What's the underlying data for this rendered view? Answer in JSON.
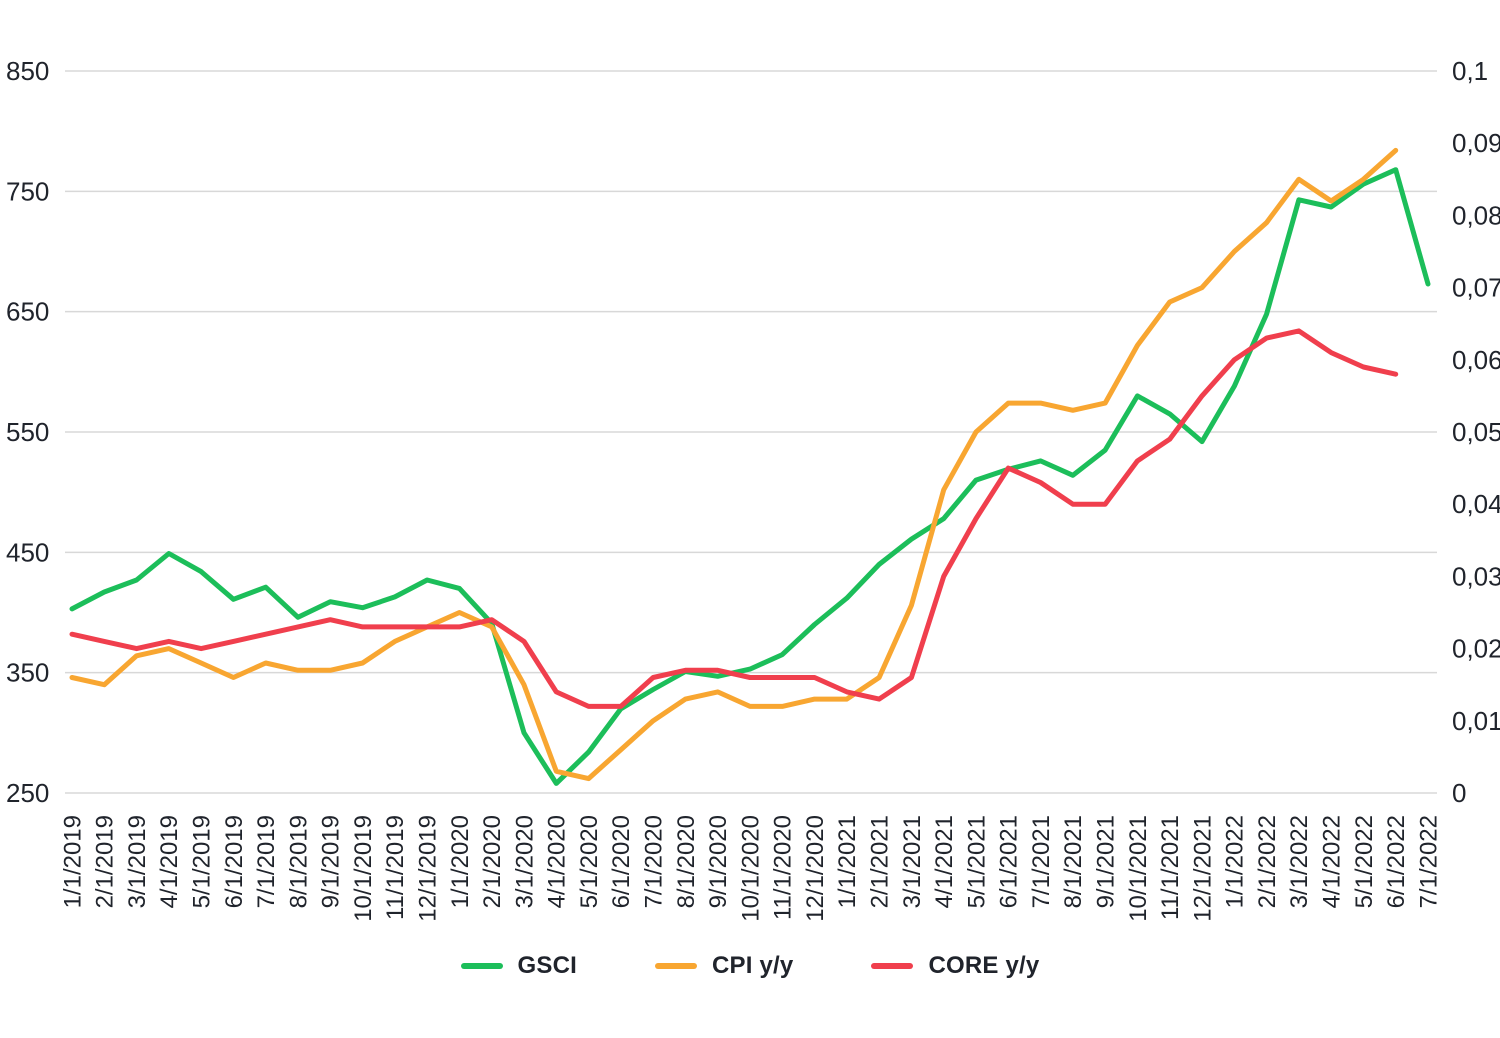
{
  "page": {
    "background_color": "#ffffff",
    "text_color": "#20242c",
    "grid_color": "#d8d8d8"
  },
  "chart_data": {
    "type": "line",
    "title": "",
    "grid": "horizontal-only",
    "legend_position": "bottom-center",
    "x": {
      "labels": [
        "1/1/2019",
        "2/1/2019",
        "3/1/2019",
        "4/1/2019",
        "5/1/2019",
        "6/1/2019",
        "7/1/2019",
        "8/1/2019",
        "9/1/2019",
        "10/1/2019",
        "11/1/2019",
        "12/1/2019",
        "1/1/2020",
        "2/1/2020",
        "3/1/2020",
        "4/1/2020",
        "5/1/2020",
        "6/1/2020",
        "7/1/2020",
        "8/1/2020",
        "9/1/2020",
        "10/1/2020",
        "11/1/2020",
        "12/1/2020",
        "1/1/2021",
        "2/1/2021",
        "3/1/2021",
        "4/1/2021",
        "5/1/2021",
        "6/1/2021",
        "7/1/2021",
        "8/1/2021",
        "9/1/2021",
        "10/1/2021",
        "11/1/2021",
        "12/1/2021",
        "1/1/2022",
        "2/1/2022",
        "3/1/2022",
        "4/1/2022",
        "5/1/2022",
        "6/1/2022",
        "7/1/2022"
      ],
      "label_rotation_degrees": -90
    },
    "axes": {
      "left": {
        "min": 250,
        "max": 850,
        "tick_step": 100,
        "tick_labels": [
          "850",
          "750",
          "650",
          "550",
          "450",
          "350",
          "250"
        ]
      },
      "right": {
        "min": 0,
        "max": 0.1,
        "tick_step": 0.01,
        "tick_labels": [
          "0,1",
          "0,09",
          "0,08",
          "0,07",
          "0,06",
          "0,05",
          "0,04",
          "0,03",
          "0,02",
          "0,01",
          "0"
        ],
        "decimal_separator": ","
      }
    },
    "series": [
      {
        "name": "GSCI",
        "axis": "left",
        "color": "#1cbe5a",
        "values": [
          403,
          417,
          427,
          449,
          434,
          411,
          421,
          396,
          409,
          404,
          413,
          427,
          420,
          391,
          300,
          258,
          284,
          320,
          336,
          351,
          347,
          353,
          365,
          390,
          412,
          440,
          461,
          478,
          510,
          519,
          526,
          514,
          535,
          580,
          565,
          542,
          588,
          648,
          743,
          737,
          756,
          768,
          673
        ]
      },
      {
        "name": "CPI y/y",
        "axis": "right",
        "color": "#f8a631",
        "values": [
          0.016,
          0.015,
          0.019,
          0.02,
          0.018,
          0.016,
          0.018,
          0.017,
          0.017,
          0.018,
          0.021,
          0.023,
          0.025,
          0.023,
          0.015,
          0.003,
          0.002,
          0.006,
          0.01,
          0.013,
          0.014,
          0.012,
          0.012,
          0.013,
          0.013,
          0.016,
          0.026,
          0.042,
          0.05,
          0.054,
          0.054,
          0.053,
          0.054,
          0.062,
          0.068,
          0.07,
          0.075,
          0.079,
          0.085,
          0.082,
          0.085,
          0.089
        ]
      },
      {
        "name": "CORE y/y",
        "axis": "right",
        "color": "#f03f4d",
        "values": [
          0.022,
          0.021,
          0.02,
          0.021,
          0.02,
          0.021,
          0.022,
          0.023,
          0.024,
          0.023,
          0.023,
          0.023,
          0.023,
          0.024,
          0.021,
          0.014,
          0.012,
          0.012,
          0.016,
          0.017,
          0.017,
          0.016,
          0.016,
          0.016,
          0.014,
          0.013,
          0.016,
          0.03,
          0.038,
          0.045,
          0.043,
          0.04,
          0.04,
          0.046,
          0.049,
          0.055,
          0.06,
          0.063,
          0.064,
          0.061,
          0.059,
          0.058
        ]
      }
    ],
    "style": {
      "line_width": 5,
      "grid_color": "#d8d8d8",
      "label_color": "#20242c",
      "axis_font_size": 26,
      "x_font_size": 24
    }
  }
}
